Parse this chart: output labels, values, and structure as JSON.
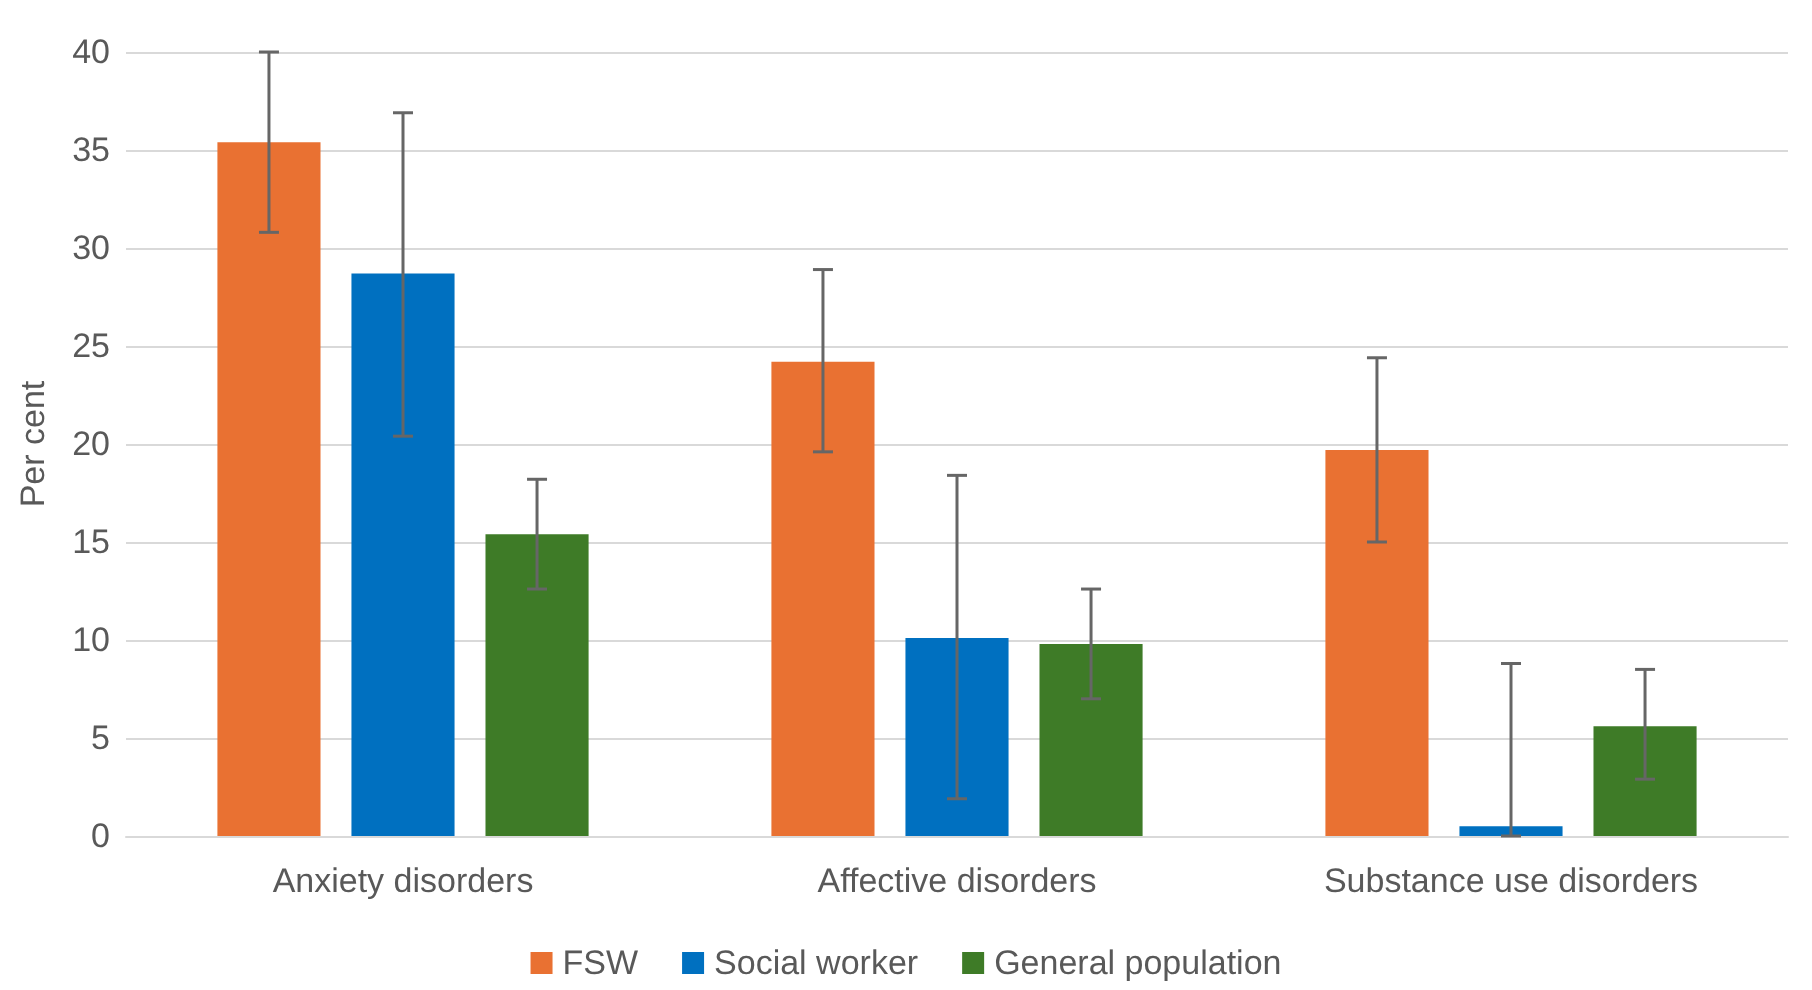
{
  "chart_data": {
    "type": "bar",
    "ylabel": "Per cent",
    "categories": [
      "Anxiety disorders",
      "Affective disorders",
      "Substance use disorders"
    ],
    "series": [
      {
        "name": "FSW",
        "color": "#e97132",
        "values": [
          35.4,
          24.2,
          19.7
        ],
        "errors": [
          [
            30.8,
            40.0
          ],
          [
            19.6,
            28.9
          ],
          [
            15.0,
            24.4
          ]
        ]
      },
      {
        "name": "Social worker",
        "color": "#0070c0",
        "values": [
          28.7,
          10.1,
          0.5
        ],
        "errors": [
          [
            20.4,
            36.9
          ],
          [
            1.9,
            18.4
          ],
          [
            0,
            8.8
          ]
        ]
      },
      {
        "name": "General population",
        "color": "#3e7b27",
        "values": [
          15.4,
          9.8,
          5.6
        ],
        "errors": [
          [
            12.6,
            18.2
          ],
          [
            7.0,
            12.6
          ],
          [
            2.9,
            8.5
          ]
        ]
      }
    ],
    "ylim": [
      0,
      40
    ],
    "yticks": [
      0,
      5,
      10,
      15,
      20,
      25,
      30,
      35,
      40
    ],
    "grid": "y",
    "legend": "bottom"
  }
}
